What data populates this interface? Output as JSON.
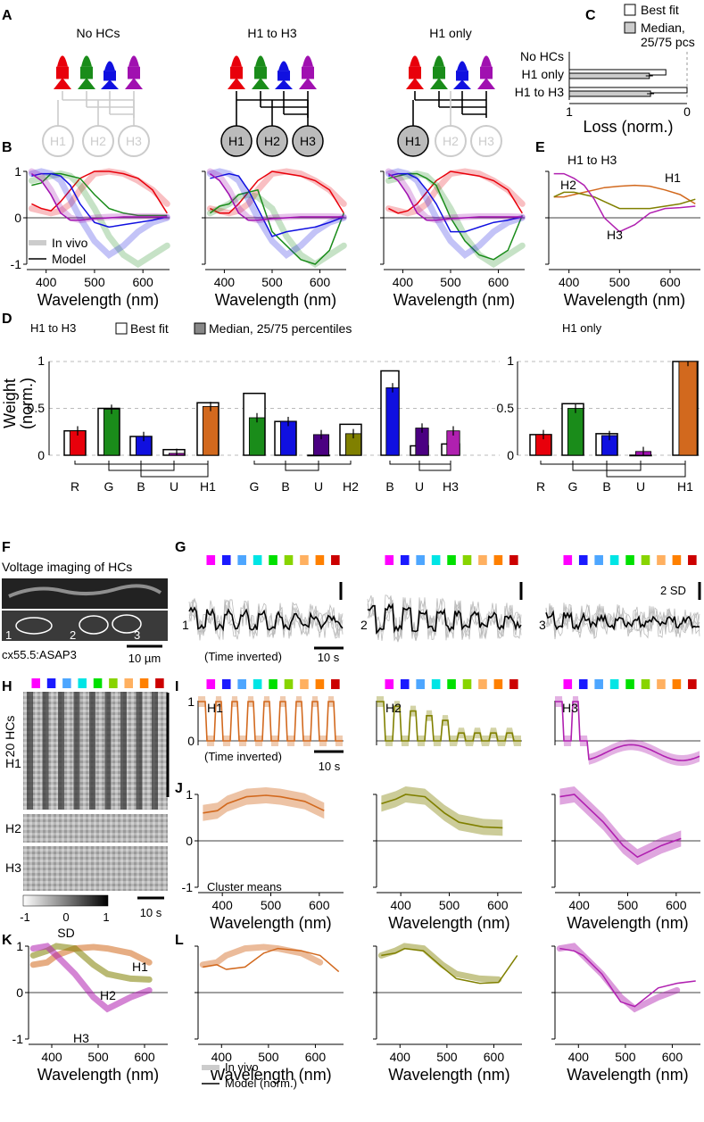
{
  "panel_letters": [
    "A",
    "B",
    "C",
    "D",
    "E",
    "F",
    "G",
    "H",
    "I",
    "J",
    "K",
    "L"
  ],
  "panel_a": {
    "titles": [
      "No HCs",
      "H1 to H3",
      "H1 only"
    ],
    "hc_labels": [
      "H1",
      "H2",
      "H3"
    ]
  },
  "panel_b": {
    "legend_invivo": "In vivo",
    "legend_model": "Model"
  },
  "common": {
    "wavelength_label": "Wavelength (nm)",
    "wl_ticks_full": [
      "400",
      "500",
      "600"
    ],
    "y_ticks": [
      "1",
      "0",
      "-1"
    ]
  },
  "panel_c": {
    "legend_best": "Best fit",
    "legend_median_1": "Median,",
    "legend_median_2": "25/75 pcs",
    "rows": [
      "No HCs",
      "H1 only",
      "H1 to H3"
    ],
    "xlabel": "Loss (norm.)",
    "x_ticks": [
      "1",
      "0"
    ]
  },
  "panel_e": {
    "labels": [
      "H1 to H3",
      "H1",
      "H2",
      "H3"
    ]
  },
  "panel_d": {
    "title_left": "H1 to H3",
    "title_right": "H1 only",
    "legend_best": "Best fit",
    "legend_median": "Median, 25/75 percentiles",
    "ylabel_1": "Weight",
    "ylabel_2": "(norm.)",
    "y_ticks": [
      "1",
      "0.5",
      "0"
    ],
    "groups": [
      {
        "labels": [
          "R",
          "G",
          "B",
          "U",
          "H1"
        ]
      },
      {
        "labels": [
          "G",
          "B",
          "U",
          "H2"
        ]
      },
      {
        "labels": [
          "B",
          "U",
          "H3"
        ]
      },
      {
        "labels": [
          "R",
          "G",
          "B",
          "U",
          "H1"
        ]
      }
    ]
  },
  "panel_f": {
    "title": "Voltage imaging of HCs",
    "label": "cx55.5:ASAP3",
    "scalebar": "10 µm",
    "roi_labels": [
      "1",
      "2",
      "3"
    ]
  },
  "panel_g": {
    "trace_labels": [
      "1",
      "2",
      "3"
    ],
    "time_inverted": "(Time inverted)",
    "scale_time": "10 s",
    "scale_sd": "2 SD"
  },
  "panel_h": {
    "ylabel": "20 HCs",
    "rows": [
      "H1",
      "H2",
      "H3"
    ],
    "cb_ticks": [
      "-1",
      "0",
      "1"
    ],
    "cb_label": "SD",
    "scale_time": "10 s"
  },
  "panel_i": {
    "labels": [
      "H1",
      "H2",
      "H3"
    ],
    "time_inverted": "(Time inverted)",
    "scale_time": "10 s",
    "y_ticks": [
      "1",
      "0"
    ]
  },
  "panel_j": {
    "cluster_means": "Cluster means"
  },
  "panel_k": {
    "labels": [
      "H1",
      "H2",
      "H3"
    ]
  },
  "panel_l": {
    "legend_invivo": "In vivo",
    "legend_model": "Model (norm.)"
  },
  "colors": {
    "red": "#e8000b",
    "green": "#1a8c1a",
    "blue": "#1010e0",
    "uv": "#a010b0",
    "h1": "#d2691e",
    "h2": "#808000",
    "h3": "#b020b0",
    "stim": [
      "#ff00ff",
      "#1a1aff",
      "#4da6ff",
      "#00e5e5",
      "#00e000",
      "#88d400",
      "#ffb060",
      "#ff8000",
      "#cc0000"
    ]
  },
  "chart_data": [
    {
      "type": "line",
      "panel": "J",
      "x": [
        360,
        390,
        410,
        450,
        490,
        520,
        570,
        610
      ],
      "ylim": [
        -1,
        1
      ],
      "series": [
        {
          "name": "H1",
          "values": [
            0.6,
            0.65,
            0.8,
            0.95,
            0.98,
            0.95,
            0.85,
            0.65
          ]
        },
        {
          "name": "H2",
          "values": [
            0.8,
            0.9,
            1.0,
            0.95,
            0.6,
            0.4,
            0.3,
            0.28
          ]
        },
        {
          "name": "H3",
          "values": [
            0.95,
            1.0,
            0.8,
            0.4,
            -0.1,
            -0.35,
            -0.1,
            0.05
          ]
        }
      ]
    },
    {
      "type": "bar",
      "panel": "C",
      "categories": [
        "No HCs",
        "H1 only",
        "H1 to H3"
      ],
      "series": [
        {
          "name": "Best fit",
          "values": [
            0.0,
            0.82,
            1.0
          ]
        },
        {
          "name": "Median, 25/75 pcs",
          "values": [
            0.0,
            0.68,
            0.69
          ]
        }
      ],
      "xlim": [
        1,
        0
      ]
    },
    {
      "type": "bar",
      "panel": "D",
      "categories": [
        "R",
        "G",
        "B",
        "U",
        "H1",
        "G",
        "B",
        "U",
        "H2",
        "B",
        "U",
        "H3",
        "R",
        "G",
        "B",
        "U",
        "H1"
      ],
      "series": [
        {
          "name": "Best fit",
          "values": [
            0.26,
            0.5,
            0.2,
            0.06,
            0.56,
            0.66,
            0.36,
            0.0,
            0.33,
            0.9,
            0.1,
            0.12,
            0.22,
            0.55,
            0.23,
            0.0,
            1.0
          ]
        },
        {
          "name": "Median, 25/75 percentiles",
          "values": [
            0.26,
            0.49,
            0.2,
            0.02,
            0.52,
            0.4,
            0.36,
            0.22,
            0.23,
            0.72,
            0.29,
            0.26,
            0.22,
            0.5,
            0.21,
            0.04,
            1.0
          ]
        }
      ],
      "ylim": [
        0,
        1
      ]
    }
  ]
}
